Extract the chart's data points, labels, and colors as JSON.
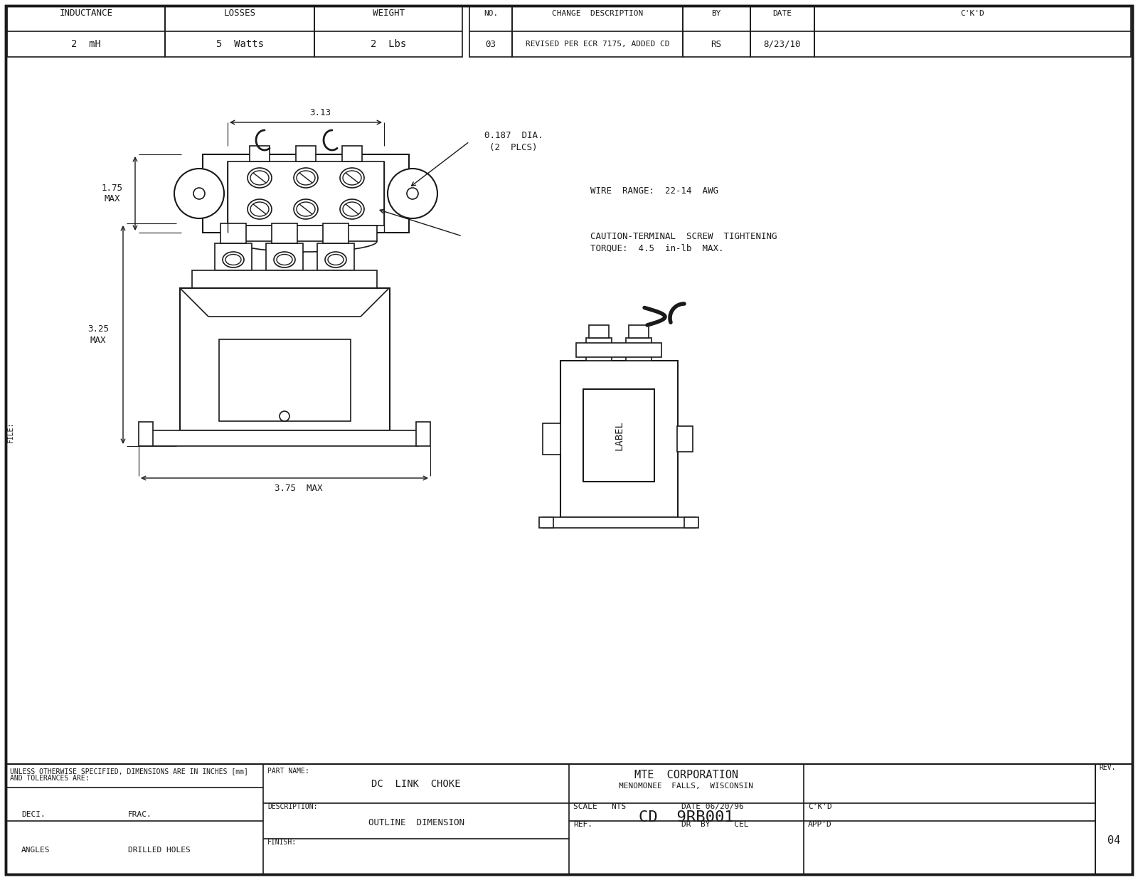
{
  "bg_color": "#ffffff",
  "line_color": "#1a1a1a",
  "inductance": "2  mH",
  "losses": "5  Watts",
  "weight": "2  Lbs",
  "change_no": "03",
  "change_desc": "REVISED PER ECR 7175, ADDED CD",
  "change_by": "RS",
  "change_date": "8/23/10",
  "part_name": "DC  LINK  CHOKE",
  "description": "OUTLINE  DIMENSION",
  "company": "MTE  CORPORATION",
  "location": "MENOMONEE  FALLS,  WISCONSIN",
  "part_number": "CD  9RB001",
  "scale": "NTS",
  "date_str": "DATE 06/20/96",
  "dr_by": "CEL",
  "rev": "04",
  "dim_313": "3.13",
  "dim_175": "1.75\nMAX",
  "dim_325": "3.25\nMAX",
  "dim_375": "3.75  MAX",
  "note1": "0.187  DIA.",
  "note2": "(2  PLCS)",
  "note3": "WIRE  RANGE:  22-14  AWG",
  "note4": "CAUTION-TERMINAL  SCREW  TIGHTENING",
  "note5": "TORQUE:  4.5  in-lb  MAX.",
  "footer1": "UNLESS OTHERWISE SPECIFIED, DIMENSIONS ARE IN INCHES [mm]",
  "footer2": "AND TOLERANCES ARE:",
  "footer3": "DECI.",
  "footer4": "FRAC.",
  "footer5": "ANGLES",
  "footer6": "DRILLED HOLES",
  "label_text": "LABEL",
  "font_family": "monospace"
}
